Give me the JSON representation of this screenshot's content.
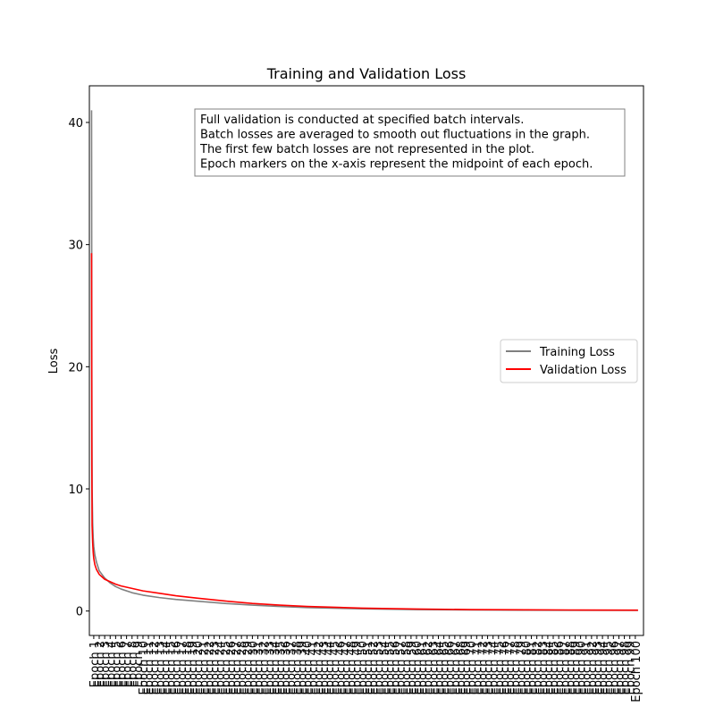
{
  "chart_data": {
    "type": "line",
    "title": "Training and Validation Loss",
    "xlabel": "",
    "ylabel": "Loss",
    "ylim": [
      -2,
      43
    ],
    "yticks": [
      0,
      10,
      20,
      30,
      40
    ],
    "grid": false,
    "legend_placement": "center-right",
    "annotation_lines": [
      "Full validation is conducted at specified batch intervals.",
      "Batch losses are averaged to smooth out fluctuations in the graph.",
      "The first few batch losses are not represented in the plot.",
      "Epoch markers on the x-axis represent the midpoint of each epoch."
    ],
    "x_tick_prefix": "Epoch",
    "epochs": [
      1,
      100
    ],
    "series": [
      {
        "name": "Training Loss",
        "color": "#808080",
        "x": [
          0.6,
          0.65,
          0.7,
          0.8,
          0.9,
          1,
          1.2,
          1.5,
          2,
          2.5,
          3,
          4,
          5,
          6,
          8,
          10,
          13,
          16,
          20,
          25,
          30,
          35,
          40,
          50,
          60,
          70,
          80,
          90,
          100.5
        ],
        "y": [
          41.0,
          20.0,
          10.0,
          7.2,
          6.0,
          5.3,
          4.6,
          4.0,
          3.3,
          3.0,
          2.7,
          2.3,
          2.0,
          1.8,
          1.5,
          1.3,
          1.1,
          0.95,
          0.8,
          0.62,
          0.48,
          0.37,
          0.28,
          0.18,
          0.12,
          0.09,
          0.07,
          0.06,
          0.05
        ]
      },
      {
        "name": "Validation Loss",
        "color": "#ff0000",
        "x": [
          0.6,
          0.65,
          0.7,
          0.8,
          0.9,
          1,
          1.2,
          1.5,
          2,
          2.5,
          3,
          4,
          5,
          6,
          8,
          10,
          13,
          16,
          20,
          25,
          30,
          35,
          40,
          50,
          60,
          70,
          80,
          90,
          100.5
        ],
        "y": [
          29.3,
          12.0,
          7.0,
          5.6,
          4.8,
          4.3,
          3.8,
          3.4,
          3.0,
          2.8,
          2.6,
          2.4,
          2.2,
          2.05,
          1.85,
          1.65,
          1.45,
          1.25,
          1.05,
          0.82,
          0.62,
          0.48,
          0.37,
          0.24,
          0.16,
          0.12,
          0.1,
          0.08,
          0.07
        ]
      }
    ]
  }
}
